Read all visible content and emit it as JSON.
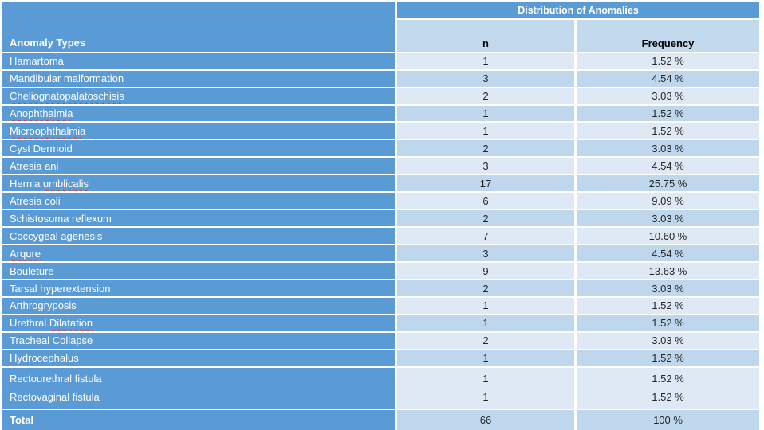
{
  "table": {
    "title": "Distribution of Anomalies",
    "col1_header": "Anomaly Types",
    "col2_header": "n",
    "col3_header": "Frequency",
    "rows": [
      {
        "type": "Hamartoma",
        "n": "1",
        "frequency": "1.52 %",
        "misspelled_part": null
      },
      {
        "type": "Mandibular malformation",
        "n": "3",
        "frequency": "4.54 %",
        "misspelled_part": null
      },
      {
        "type": "Cheliognatopalatoschisis",
        "n": "2",
        "frequency": "3.03 %",
        "misspelled_part": "Cheliognatopalatoschisis"
      },
      {
        "type": "Anophthalmia",
        "n": "1",
        "frequency": "1.52 %",
        "misspelled_part": "Anophthalmia"
      },
      {
        "type": "Microophthalmia",
        "n": "1",
        "frequency": "1.52 %",
        "misspelled_part": "Microophthalmia"
      },
      {
        "type": "Cyst Dermoid",
        "n": "2",
        "frequency": "3.03 %",
        "misspelled_part": null
      },
      {
        "type": "Atresia ani",
        "n": "3",
        "frequency": "4.54 %",
        "misspelled_part": null
      },
      {
        "type": "Hernia umblicalis",
        "n": "17",
        "frequency": "25.75 %",
        "misspelled_part": "umblicalis"
      },
      {
        "type": "Atresia coli",
        "n": "6",
        "frequency": "9.09 %",
        "misspelled_part": null
      },
      {
        "type": "Schistosoma reflexum",
        "n": "2",
        "frequency": "3.03 %",
        "misspelled_part": null
      },
      {
        "type": "Coccygeal agenesis",
        "n": "7",
        "frequency": "10.60 %",
        "misspelled_part": null
      },
      {
        "type": "Arqure",
        "n": "3",
        "frequency": "4.54 %",
        "misspelled_part": "Arqure"
      },
      {
        "type": "Bouleture",
        "n": "9",
        "frequency": "13.63 %",
        "misspelled_part": null
      },
      {
        "type": "Tarsal hyperextension",
        "n": "2",
        "frequency": "3.03 %",
        "misspelled_part": null
      },
      {
        "type": "Arthrogryposis",
        "n": "1",
        "frequency": "1.52 %",
        "misspelled_part": null
      },
      {
        "type": "Urethral Dilatation",
        "n": "1",
        "frequency": "1.52 %",
        "misspelled_part": "Dilatation"
      },
      {
        "type": "Tracheal Collapse",
        "n": "2",
        "frequency": "3.03 %",
        "misspelled_part": null
      },
      {
        "type": "Hydrocephalus",
        "n": "1",
        "frequency": "1.52 %",
        "misspelled_part": null
      },
      {
        "lines": [
          {
            "type": "Rectourethral fistula",
            "n": "1",
            "frequency": "1.52 %"
          },
          {
            "type": "Rectovaginal fistula",
            "n": "1",
            "frequency": "1.52 %"
          }
        ]
      }
    ],
    "total": {
      "label": "Total",
      "n": "66",
      "frequency": "100 %"
    }
  },
  "colors": {
    "accent_blue": "#5B9BD5",
    "band_light": "#DEE9F5",
    "band_dark": "#BFD7EC",
    "header_cell": "#C3D9ED",
    "spellcheck_red": "#EB3323"
  }
}
